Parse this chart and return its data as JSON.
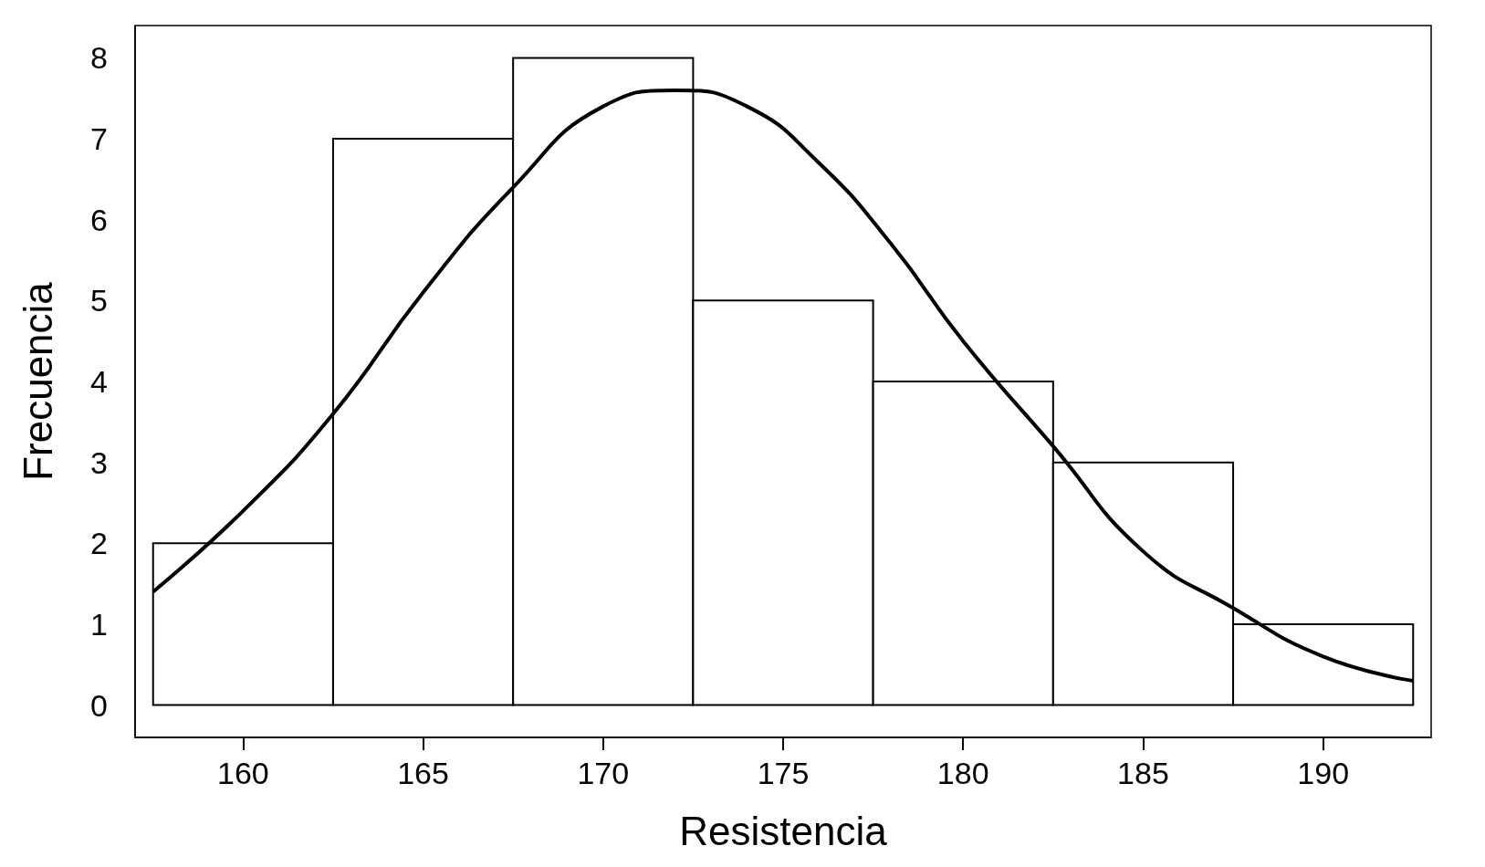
{
  "chart_data": {
    "type": "histogram",
    "xlabel": "Resistencia",
    "ylabel": "Frecuencia",
    "bins": [
      157.5,
      162.5,
      167.5,
      172.5,
      177.5,
      182.5,
      187.5,
      192.5
    ],
    "values": [
      2,
      7,
      8,
      5,
      4,
      3,
      1
    ],
    "color": "#ffffff",
    "series": [
      {
        "type": "line",
        "color": "#000000",
        "x": [
          157.5,
          160,
          162.5,
          165,
          167.5,
          170,
          172,
          174,
          176,
          178,
          180,
          182.5,
          185,
          187.5,
          190,
          192.5
        ],
        "values": [
          1.4,
          2.4,
          3.6,
          5.1,
          6.4,
          7.4,
          7.6,
          7.4,
          6.7,
          5.7,
          4.5,
          3.2,
          1.9,
          1.2,
          0.6,
          0.3
        ]
      }
    ],
    "xlim": [
      157,
      193
    ],
    "xticks": [
      160,
      165,
      170,
      175,
      180,
      185,
      190
    ],
    "ylim": [
      -0.4,
      8.4
    ],
    "yticks": [
      0,
      1,
      2,
      3,
      4,
      5,
      6,
      7,
      8
    ],
    "grid": false
  }
}
